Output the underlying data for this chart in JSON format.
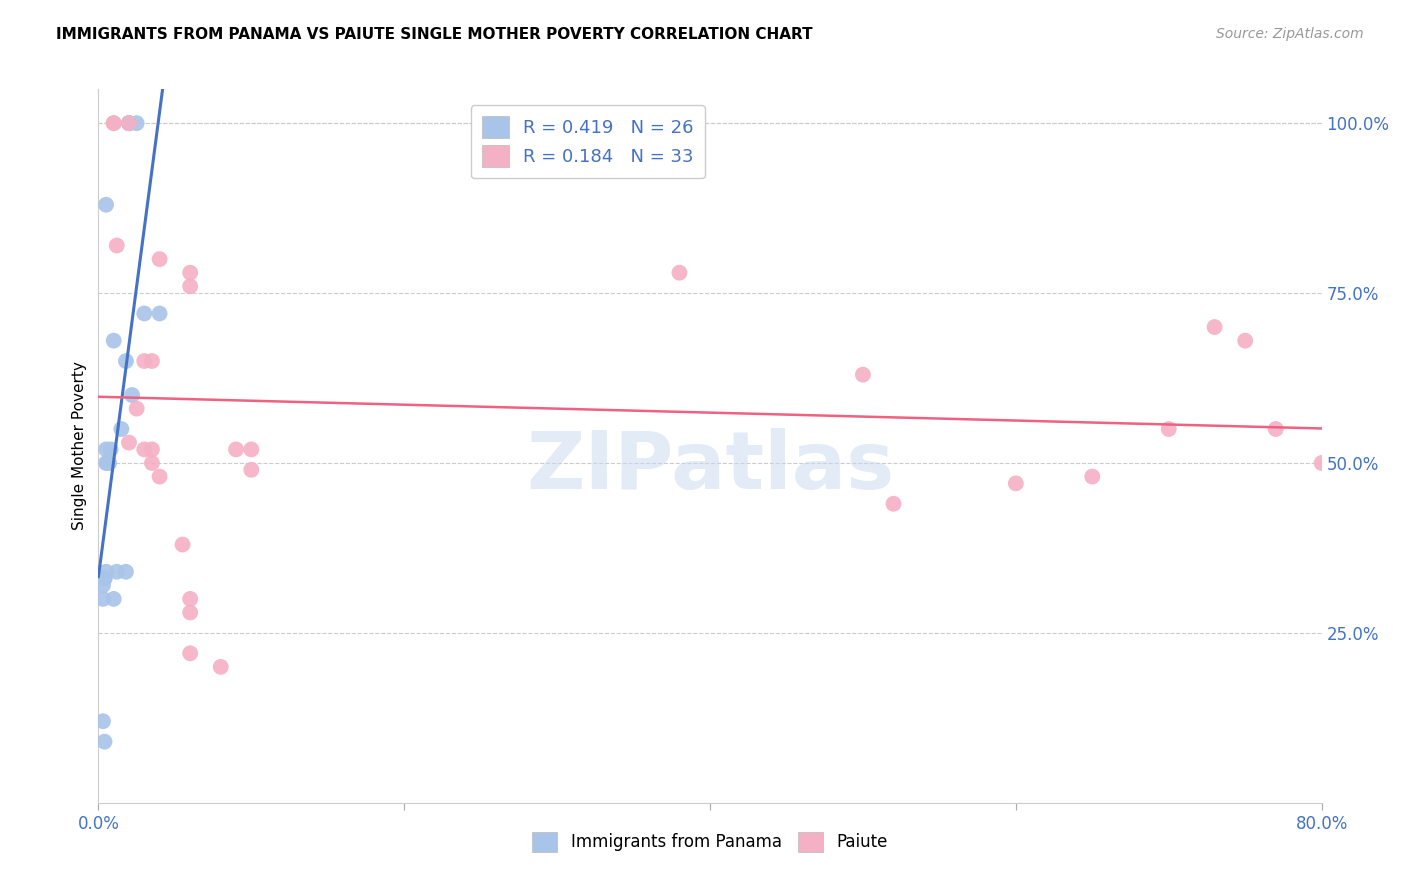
{
  "title": "IMMIGRANTS FROM PANAMA VS PAIUTE SINGLE MOTHER POVERTY CORRELATION CHART",
  "source": "Source: ZipAtlas.com",
  "ylabel": "Single Mother Poverty",
  "right_yticks": [
    "100.0%",
    "75.0%",
    "50.0%",
    "25.0%"
  ],
  "right_ytick_vals": [
    1.0,
    0.75,
    0.5,
    0.25
  ],
  "legend_label1": "R = 0.419   N = 26",
  "legend_label2": "R = 0.184   N = 33",
  "watermark": "ZIPatlas",
  "title_fontsize": 11,
  "axis_label_color": "#4472c4",
  "blue_scatter_color": "#a8c4e8",
  "pink_scatter_color": "#f4b0c4",
  "blue_line_color": "#4472c4",
  "pink_line_color": "#f06080",
  "blue_points_x": [
    0.02,
    0.02,
    0.02,
    0.025,
    0.005,
    0.03,
    0.04,
    0.01,
    0.018,
    0.022,
    0.015,
    0.008,
    0.007,
    0.006,
    0.005,
    0.005,
    0.005,
    0.012,
    0.018,
    0.004,
    0.004,
    0.003,
    0.003,
    0.01,
    0.003,
    0.004
  ],
  "blue_points_y": [
    1.0,
    1.0,
    1.0,
    1.0,
    0.88,
    0.72,
    0.72,
    0.68,
    0.65,
    0.6,
    0.55,
    0.52,
    0.5,
    0.5,
    0.52,
    0.5,
    0.34,
    0.34,
    0.34,
    0.33,
    0.33,
    0.32,
    0.3,
    0.3,
    0.12,
    0.09
  ],
  "pink_points_x": [
    0.01,
    0.02,
    0.01,
    0.012,
    0.04,
    0.06,
    0.06,
    0.03,
    0.035,
    0.025,
    0.02,
    0.03,
    0.035,
    0.035,
    0.04,
    0.055,
    0.06,
    0.06,
    0.06,
    0.08,
    0.09,
    0.1,
    0.1,
    0.38,
    0.5,
    0.52,
    0.6,
    0.65,
    0.7,
    0.73,
    0.75,
    0.77,
    0.8
  ],
  "pink_points_y": [
    1.0,
    1.0,
    1.0,
    0.82,
    0.8,
    0.78,
    0.76,
    0.65,
    0.65,
    0.58,
    0.53,
    0.52,
    0.52,
    0.5,
    0.48,
    0.38,
    0.3,
    0.28,
    0.22,
    0.2,
    0.52,
    0.52,
    0.49,
    0.78,
    0.63,
    0.44,
    0.47,
    0.48,
    0.55,
    0.7,
    0.68,
    0.55,
    0.5
  ],
  "xlim": [
    0.0,
    0.8
  ],
  "ylim": [
    0.0,
    1.05
  ],
  "blue_line_xlim": [
    0.0,
    0.05
  ],
  "pink_line_xlim": [
    0.0,
    0.8
  ],
  "xticks": [
    0.0,
    0.2,
    0.4,
    0.6,
    0.8
  ],
  "xtick_labels": [
    "0.0%",
    "",
    "",
    "",
    "80.0%"
  ]
}
